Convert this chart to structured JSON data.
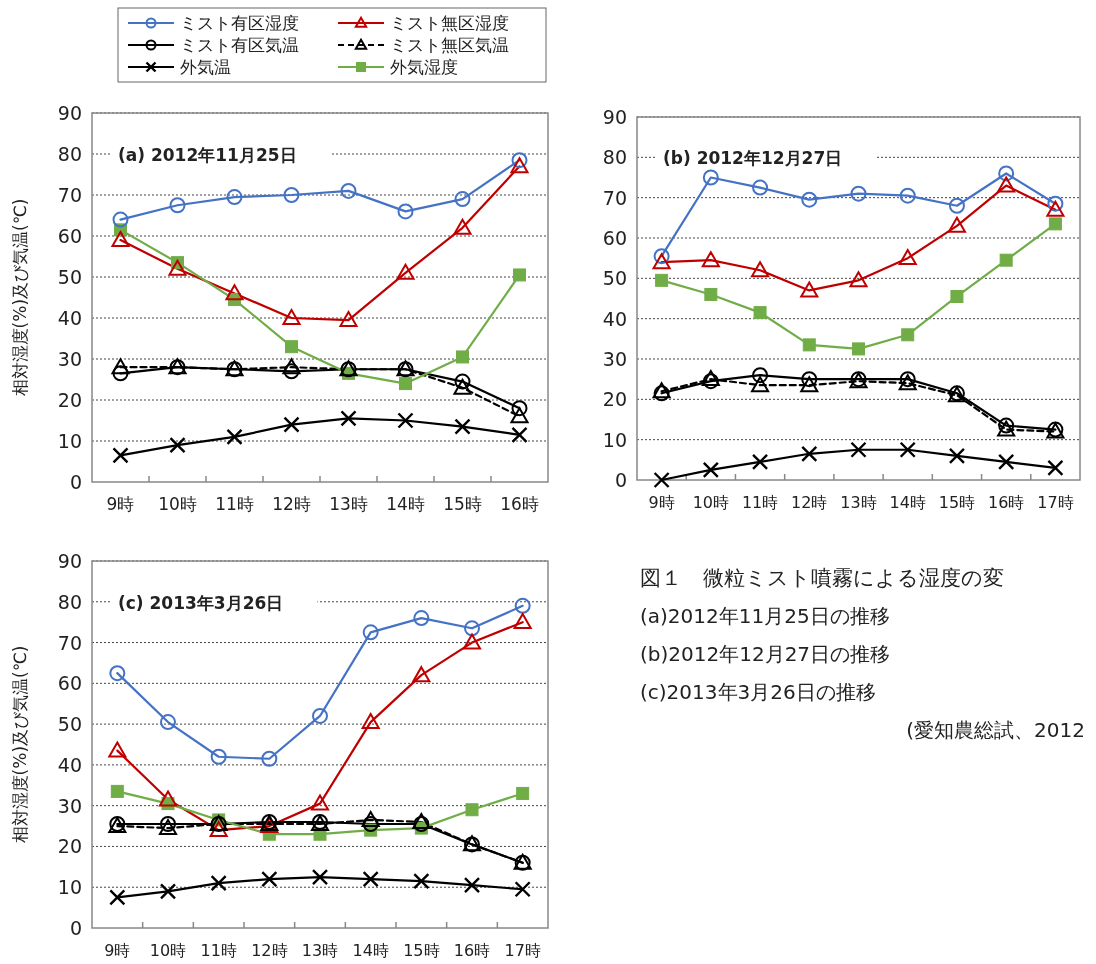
{
  "chart_data": [
    {
      "type": "line",
      "title": "(a) 2012年11月25日",
      "ylabel": "相対湿度(%)及び気温(℃)",
      "categories": [
        "9時",
        "10時",
        "11時",
        "12時",
        "13時",
        "14時",
        "15時",
        "16時"
      ],
      "ylim": [
        0,
        90
      ],
      "yticks": [
        0,
        10,
        20,
        30,
        40,
        50,
        60,
        70,
        80,
        90
      ],
      "grid": "y",
      "legend": "top",
      "series": [
        {
          "name": "ミスト有区湿度",
          "color": "#4472c4",
          "marker": "circle",
          "line_style": "solid",
          "values": [
            64,
            67.5,
            69.5,
            70,
            71,
            66,
            69,
            78.5
          ]
        },
        {
          "name": "ミスト無区湿度",
          "color": "#c00000",
          "marker": "triangle",
          "line_style": "solid",
          "values": [
            59,
            52,
            46,
            40,
            39.5,
            51,
            62,
            77
          ]
        },
        {
          "name": "ミスト有区気温",
          "color": "#000000",
          "marker": "circle",
          "line_style": "solid",
          "values": [
            26.5,
            28,
            27.5,
            27,
            27.5,
            27.5,
            24.5,
            18
          ]
        },
        {
          "name": "ミスト無区気温",
          "color": "#000000",
          "marker": "triangle",
          "line_style": "dashed",
          "values": [
            28,
            28,
            27.5,
            28,
            27.5,
            27.5,
            23,
            16
          ]
        },
        {
          "name": "外気温",
          "color": "#000000",
          "marker": "cross",
          "line_style": "solid",
          "values": [
            6.5,
            9,
            11,
            14,
            15.5,
            15,
            13.5,
            11.5
          ]
        },
        {
          "name": "外気湿度",
          "color": "#70ad47",
          "marker": "square",
          "line_style": "solid",
          "values": [
            61.5,
            53.5,
            44.5,
            33,
            26.5,
            24,
            30.5,
            50.5
          ]
        }
      ]
    },
    {
      "type": "line",
      "title": "(b) 2012年12月27日",
      "categories": [
        "9時",
        "10時",
        "11時",
        "12時",
        "13時",
        "14時",
        "15時",
        "16時",
        "17時"
      ],
      "ylim": [
        0,
        90
      ],
      "yticks": [
        0,
        10,
        20,
        30,
        40,
        50,
        60,
        70,
        80,
        90
      ],
      "grid": "y",
      "series": [
        {
          "color": "#4472c4",
          "marker": "circle",
          "line_style": "solid",
          "values": [
            55.5,
            75,
            72.5,
            69.5,
            71,
            70.5,
            68,
            76,
            68.5
          ]
        },
        {
          "color": "#c00000",
          "marker": "triangle",
          "line_style": "solid",
          "values": [
            54,
            54.5,
            52,
            47,
            49.5,
            55,
            63,
            73,
            67
          ]
        },
        {
          "color": "#000000",
          "marker": "circle",
          "line_style": "solid",
          "values": [
            21.5,
            24.5,
            26,
            25,
            25,
            25,
            21.5,
            13.5,
            12.5
          ]
        },
        {
          "color": "#000000",
          "marker": "triangle",
          "line_style": "dashed",
          "values": [
            22,
            25,
            23.5,
            23.5,
            24.5,
            24,
            21,
            12.5,
            12
          ]
        },
        {
          "color": "#000000",
          "marker": "cross",
          "line_style": "solid",
          "values": [
            0,
            2.5,
            4.5,
            6.5,
            7.5,
            7.5,
            6,
            4.5,
            3
          ]
        },
        {
          "color": "#70ad47",
          "marker": "square",
          "line_style": "solid",
          "values": [
            49.5,
            46,
            41.5,
            33.5,
            32.5,
            36,
            45.5,
            54.5,
            63.5
          ]
        }
      ]
    },
    {
      "type": "line",
      "title": "(c) 2013年3月26日",
      "ylabel": "相対湿度(%)及び気温(℃)",
      "categories": [
        "9時",
        "10時",
        "11時",
        "12時",
        "13時",
        "14時",
        "15時",
        "16時",
        "17時"
      ],
      "ylim": [
        0,
        90
      ],
      "yticks": [
        0,
        10,
        20,
        30,
        40,
        50,
        60,
        70,
        80,
        90
      ],
      "grid": "y",
      "series": [
        {
          "color": "#4472c4",
          "marker": "circle",
          "line_style": "solid",
          "values": [
            62.5,
            50.5,
            42,
            41.5,
            52,
            72.5,
            76,
            73.5,
            79
          ]
        },
        {
          "color": "#c00000",
          "marker": "triangle",
          "line_style": "solid",
          "values": [
            43.5,
            31.5,
            24,
            25,
            30.5,
            50.5,
            62,
            70,
            75
          ]
        },
        {
          "color": "#000000",
          "marker": "circle",
          "line_style": "solid",
          "values": [
            25.5,
            25.5,
            25.5,
            26,
            26,
            25.5,
            25.5,
            20.5,
            16
          ]
        },
        {
          "color": "#000000",
          "marker": "triangle",
          "line_style": "dashed",
          "values": [
            25,
            24.5,
            25.5,
            25.5,
            25.5,
            26.5,
            26,
            20.5,
            16
          ]
        },
        {
          "color": "#000000",
          "marker": "cross",
          "line_style": "solid",
          "values": [
            7.5,
            9,
            11,
            12,
            12.5,
            12,
            11.5,
            10.5,
            9.5
          ]
        },
        {
          "color": "#70ad47",
          "marker": "square",
          "line_style": "solid",
          "values": [
            33.5,
            30.5,
            26.5,
            23,
            23,
            24,
            24.5,
            29,
            33
          ]
        }
      ]
    },
    {
      "type": "other",
      "title": "図１　微粒ミスト噴霧による湿度の変",
      "annotations": [
        "(a)2012年11月25日の推移",
        "(b)2012年12月27日の推移",
        "(c)2013年3月26日の推移",
        "(愛知農総試、2012"
      ]
    }
  ]
}
